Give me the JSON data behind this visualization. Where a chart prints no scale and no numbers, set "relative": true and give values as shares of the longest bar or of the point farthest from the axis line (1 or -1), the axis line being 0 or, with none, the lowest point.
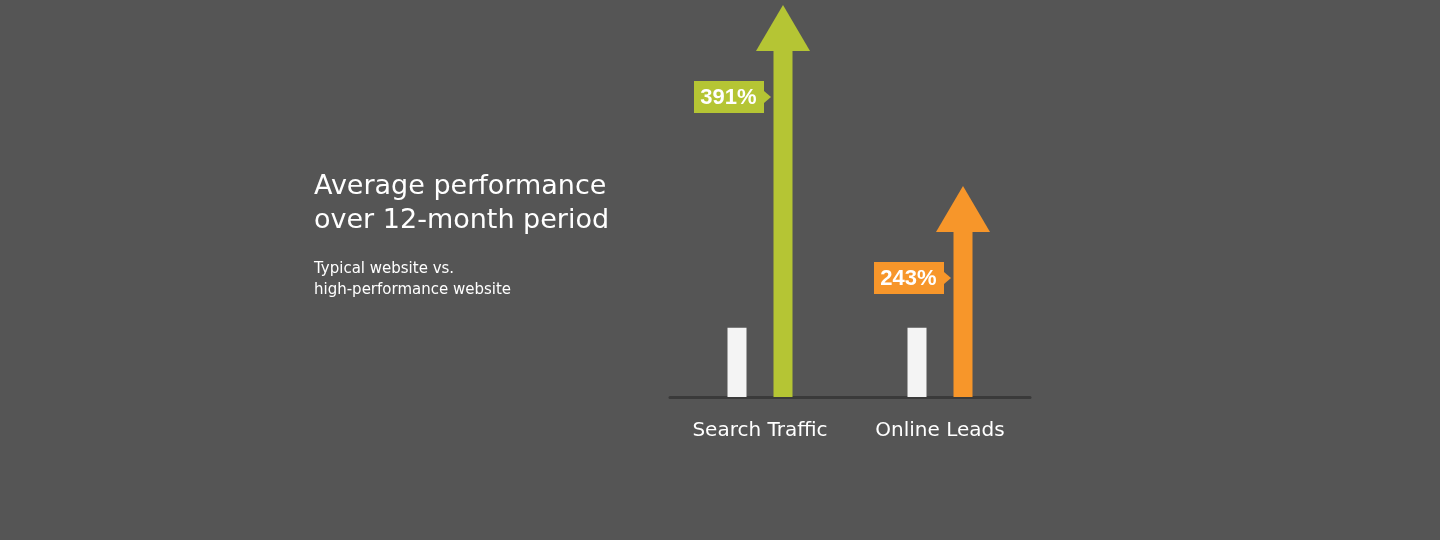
{
  "chart_data": {
    "type": "bar",
    "title": "Average performance\nover 12-month period",
    "subtitle": "Typical website vs.\nhigh-performance website",
    "categories": [
      "Search Traffic",
      "Online Leads"
    ],
    "relative": true,
    "grid": false,
    "series": [
      {
        "color": "#f4f4f4",
        "values": [
          0.2,
          0.2
        ]
      },
      {
        "colors": [
          "#b5c534",
          "#f7962a"
        ],
        "marker": "triangle",
        "values": [
          1,
          0.477
        ]
      }
    ],
    "annotations": [
      "391%",
      "243%"
    ]
  }
}
